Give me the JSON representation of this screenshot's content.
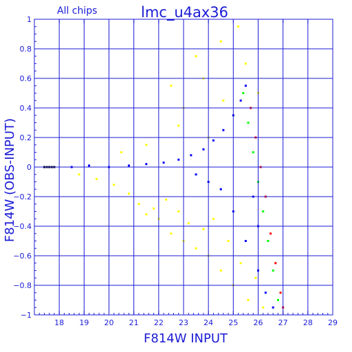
{
  "header": {
    "left_label": "All chips",
    "title": "lmc_u4ax36"
  },
  "colors": {
    "axis": "#1a1ad6",
    "grid": "#1a1ad6",
    "series_blue": "#0000ff",
    "series_yellow": "#ffff00",
    "series_green": "#00ff00",
    "series_red": "#ff0000",
    "series_black": "#000000"
  },
  "chart_data": {
    "type": "scatter",
    "title": "lmc_u4ax36",
    "subtitle": "All chips",
    "xlabel": "F814W INPUT",
    "ylabel": "F814W (OBS-INPUT)",
    "xlim": [
      17,
      29
    ],
    "ylim": [
      -1,
      1
    ],
    "x_ticks": [
      18,
      19,
      20,
      21,
      22,
      23,
      24,
      25,
      26,
      27,
      28,
      29
    ],
    "y_ticks": [
      -1,
      -0.8,
      -0.6,
      -0.4,
      -0.2,
      0,
      0.2,
      0.4,
      0.6,
      0.8,
      1
    ],
    "x_tick_labels": [
      "18",
      "19",
      "20",
      "21",
      "22",
      "23",
      "24",
      "25",
      "26",
      "27",
      "28",
      "29"
    ],
    "y_tick_labels": [
      "−1",
      "−0.8",
      "−0.6",
      "−0.4",
      "−0.2",
      "0",
      "0.2",
      "0.4",
      "0.6",
      "0.8",
      "1"
    ],
    "grid": true,
    "series": [
      {
        "color": "yellow",
        "points": [
          [
            18.8,
            -0.05
          ],
          [
            19.5,
            -0.08
          ],
          [
            20.2,
            -0.12
          ],
          [
            20.8,
            -0.18
          ],
          [
            21.2,
            -0.25
          ],
          [
            21.5,
            -0.32
          ],
          [
            21.8,
            -0.28
          ],
          [
            22.0,
            -0.35
          ],
          [
            22.3,
            -0.22
          ],
          [
            22.5,
            -0.45
          ],
          [
            22.8,
            -0.3
          ],
          [
            23.0,
            -0.5
          ],
          [
            23.2,
            -0.38
          ],
          [
            23.5,
            -0.55
          ],
          [
            23.8,
            -0.42
          ],
          [
            24.0,
            -0.6
          ],
          [
            24.2,
            -0.35
          ],
          [
            24.5,
            -0.7
          ],
          [
            24.8,
            -0.5
          ],
          [
            25.0,
            -0.8
          ],
          [
            25.3,
            -0.65
          ],
          [
            25.6,
            -0.9
          ],
          [
            25.9,
            -0.75
          ],
          [
            26.2,
            -0.95
          ],
          [
            22.5,
            0.55
          ],
          [
            23.0,
            0.4
          ],
          [
            23.5,
            0.75
          ],
          [
            24.0,
            0.2
          ],
          [
            24.5,
            0.85
          ],
          [
            25.0,
            0.35
          ],
          [
            25.5,
            0.7
          ],
          [
            26.0,
            0.5
          ],
          [
            20.5,
            0.1
          ],
          [
            21.5,
            0.15
          ],
          [
            22.8,
            0.28
          ],
          [
            23.8,
            0.6
          ],
          [
            24.6,
            0.45
          ],
          [
            25.2,
            0.95
          ]
        ]
      },
      {
        "color": "blue",
        "points": [
          [
            17.8,
            0.0
          ],
          [
            18.5,
            0.0
          ],
          [
            19.2,
            0.01
          ],
          [
            20.0,
            0.0
          ],
          [
            20.8,
            0.01
          ],
          [
            21.5,
            0.02
          ],
          [
            22.2,
            0.03
          ],
          [
            22.8,
            0.05
          ],
          [
            23.3,
            0.08
          ],
          [
            23.8,
            0.12
          ],
          [
            24.2,
            0.18
          ],
          [
            24.6,
            0.25
          ],
          [
            25.0,
            0.35
          ],
          [
            25.3,
            0.45
          ],
          [
            25.5,
            0.55
          ],
          [
            24.5,
            -0.15
          ],
          [
            25.0,
            -0.3
          ],
          [
            25.5,
            -0.5
          ],
          [
            26.0,
            -0.7
          ],
          [
            26.3,
            -0.85
          ],
          [
            26.6,
            -0.95
          ],
          [
            23.5,
            -0.05
          ],
          [
            24.0,
            -0.1
          ],
          [
            25.8,
            -0.2
          ],
          [
            26.0,
            -0.4
          ]
        ]
      },
      {
        "color": "green",
        "points": [
          [
            25.6,
            0.3
          ],
          [
            25.8,
            0.1
          ],
          [
            26.0,
            -0.1
          ],
          [
            26.2,
            -0.3
          ],
          [
            26.4,
            -0.5
          ],
          [
            26.6,
            -0.7
          ],
          [
            26.8,
            -0.9
          ],
          [
            25.4,
            0.5
          ]
        ]
      },
      {
        "color": "red",
        "points": [
          [
            25.7,
            0.4
          ],
          [
            25.9,
            0.2
          ],
          [
            26.1,
            0.0
          ],
          [
            26.3,
            -0.2
          ],
          [
            26.5,
            -0.45
          ],
          [
            26.7,
            -0.65
          ],
          [
            26.9,
            -0.85
          ],
          [
            27.0,
            -0.95
          ]
        ]
      },
      {
        "color": "black",
        "points": [
          [
            17.4,
            0.0
          ],
          [
            17.5,
            0.0
          ],
          [
            17.6,
            0.0
          ],
          [
            17.7,
            0.0
          ],
          [
            17.8,
            0.0
          ]
        ]
      }
    ]
  }
}
